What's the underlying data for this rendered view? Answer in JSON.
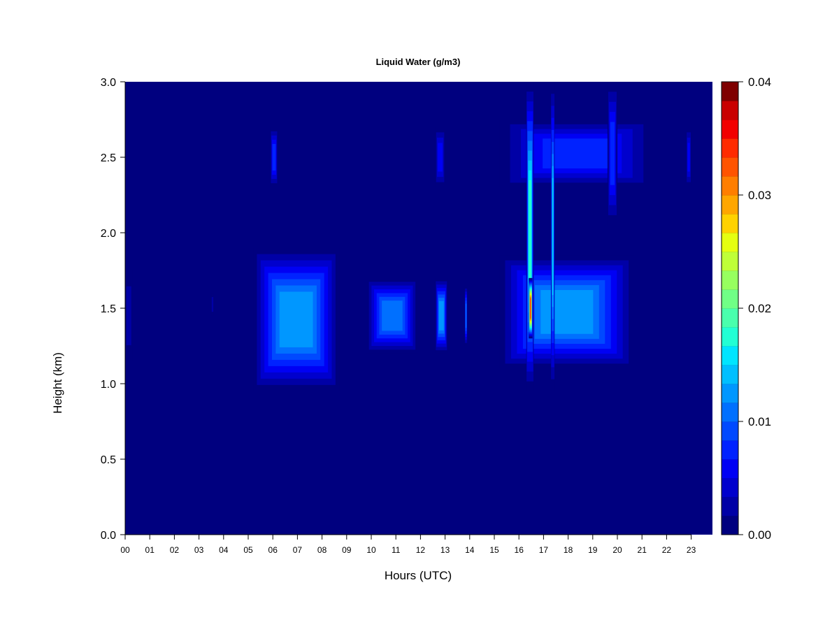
{
  "chart_data": {
    "type": "heatmap",
    "title": "Liquid Water (g/m3)",
    "xlabel": "Hours (UTC)",
    "ylabel": "Height (km)",
    "xlim": [
      0,
      24
    ],
    "ylim": [
      0,
      3.0
    ],
    "x_tick_labels": [
      "00",
      "01",
      "02",
      "03",
      "04",
      "05",
      "06",
      "07",
      "08",
      "09",
      "10",
      "11",
      "12",
      "13",
      "14",
      "15",
      "16",
      "17",
      "18",
      "19",
      "20",
      "21",
      "22",
      "23"
    ],
    "y_ticks": [
      0.0,
      0.5,
      1.0,
      1.5,
      2.0,
      2.5,
      3.0
    ],
    "y_tick_labels": [
      "0.0",
      "0.5",
      "1.0",
      "1.5",
      "2.0",
      "2.5",
      "3.0"
    ],
    "colorbar": {
      "min": 0.0,
      "max": 0.04,
      "tick_values": [
        0.0,
        0.01,
        0.02,
        0.03,
        0.04
      ],
      "tick_labels": [
        "0.00",
        "0.01",
        "0.02",
        "0.03",
        "0.04"
      ],
      "colors": [
        "#00007f",
        "#0000a6",
        "#0000cd",
        "#0000f4",
        "#0022ff",
        "#0049ff",
        "#0070ff",
        "#0097ff",
        "#00bfff",
        "#00e5ff",
        "#22ffd4",
        "#49ffad",
        "#70ff86",
        "#97ff5f",
        "#bfff38",
        "#e5ff11",
        "#ffd200",
        "#ffa600",
        "#ff7e00",
        "#ff5400",
        "#ff2b00",
        "#f20000",
        "#c90000",
        "#7f0000"
      ]
    },
    "background_value": 0.0,
    "cloud_features": [
      {
        "t_start": 0.0,
        "t_end": 0.3,
        "h_low": 1.15,
        "h_high": 1.75,
        "value": 0.004
      },
      {
        "t_start": 3.5,
        "t_end": 3.6,
        "h_low": 1.45,
        "h_high": 1.6,
        "value": 0.003
      },
      {
        "t_start": 5.2,
        "t_end": 8.7,
        "h_low": 0.95,
        "h_high": 1.9,
        "value": 0.014
      },
      {
        "t_start": 5.9,
        "t_end": 6.2,
        "h_low": 2.3,
        "h_high": 2.7,
        "value": 0.008
      },
      {
        "t_start": 9.8,
        "t_end": 11.9,
        "h_low": 1.2,
        "h_high": 1.7,
        "value": 0.012
      },
      {
        "t_start": 12.6,
        "t_end": 13.1,
        "h_low": 1.2,
        "h_high": 1.7,
        "value": 0.013
      },
      {
        "t_start": 12.6,
        "t_end": 13.0,
        "h_low": 2.3,
        "h_high": 2.7,
        "value": 0.007
      },
      {
        "t_start": 13.8,
        "t_end": 13.9,
        "h_low": 1.25,
        "h_high": 1.65,
        "value": 0.011
      },
      {
        "t_start": 15.2,
        "t_end": 21.5,
        "h_low": 2.3,
        "h_high": 2.75,
        "value": 0.009
      },
      {
        "t_start": 15.2,
        "t_end": 20.7,
        "h_low": 1.1,
        "h_high": 1.85,
        "value": 0.014
      },
      {
        "t_start": 16.3,
        "t_end": 16.6,
        "h_low": 0.95,
        "h_high": 3.0,
        "value": 0.019
      },
      {
        "t_start": 16.4,
        "t_end": 16.55,
        "h_low": 1.3,
        "h_high": 1.7,
        "value": 0.033
      },
      {
        "t_start": 17.3,
        "t_end": 17.45,
        "h_low": 0.95,
        "h_high": 3.0,
        "value": 0.015
      },
      {
        "t_start": 19.6,
        "t_end": 20.0,
        "h_low": 2.05,
        "h_high": 3.0,
        "value": 0.009
      },
      {
        "t_start": 22.8,
        "t_end": 23.0,
        "h_low": 2.3,
        "h_high": 2.7,
        "value": 0.006
      }
    ]
  }
}
